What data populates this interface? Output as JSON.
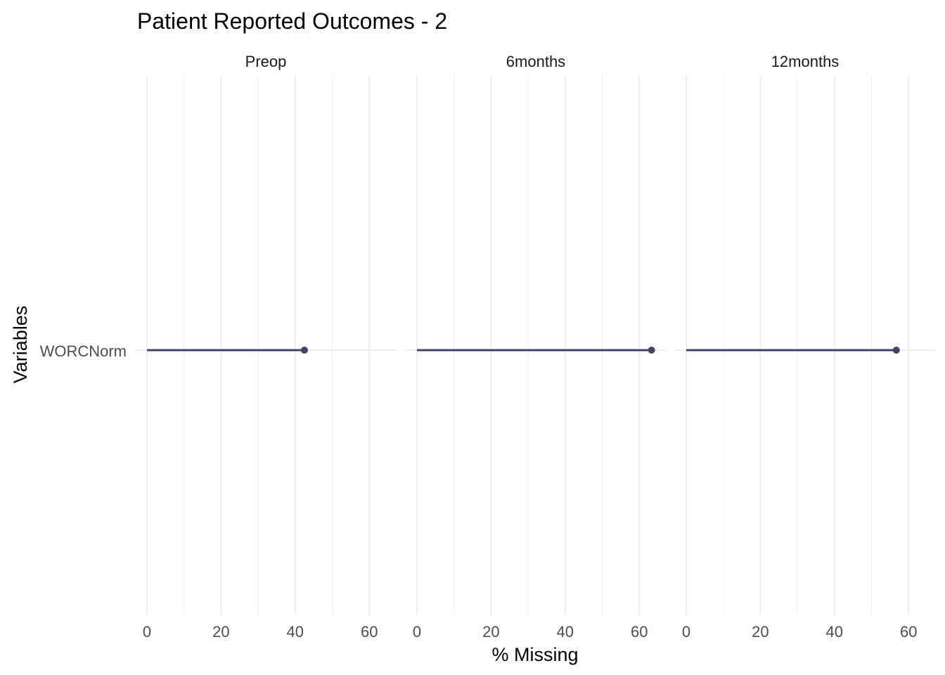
{
  "chart_data": {
    "type": "lollipop",
    "title": "Patient Reported Outcomes - 2",
    "xlabel": "% Missing",
    "ylabel": "Variables",
    "xlim": [
      0,
      65
    ],
    "x_ticks": [
      0,
      20,
      40,
      60
    ],
    "x_tick_labels": [
      "0",
      "20",
      "40",
      "60"
    ],
    "grid": true,
    "variables": [
      "WORCNorm"
    ],
    "panels": [
      {
        "name": "Preop",
        "values": [
          42.5
        ]
      },
      {
        "name": "6months",
        "values": [
          63.3
        ]
      },
      {
        "name": "12months",
        "values": [
          56.7
        ]
      }
    ],
    "colors": {
      "segment": "#414468",
      "point": "#414468"
    }
  }
}
